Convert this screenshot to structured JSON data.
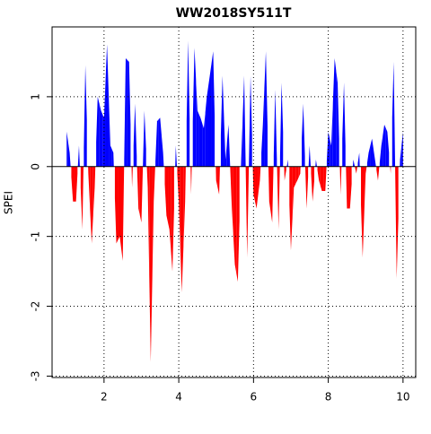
{
  "chart_data": {
    "type": "area",
    "title": "WW2018SY511T",
    "y_label": "SPEI",
    "x": [
      1,
      1.08,
      1.17,
      1.25,
      1.33,
      1.42,
      1.5,
      1.58,
      1.67,
      1.75,
      1.83,
      1.92,
      2,
      2.08,
      2.17,
      2.25,
      2.33,
      2.42,
      2.5,
      2.58,
      2.67,
      2.75,
      2.83,
      2.92,
      3,
      3.08,
      3.17,
      3.25,
      3.33,
      3.42,
      3.5,
      3.58,
      3.67,
      3.75,
      3.83,
      3.92,
      4,
      4.08,
      4.17,
      4.25,
      4.33,
      4.42,
      4.5,
      4.58,
      4.67,
      4.75,
      4.83,
      4.92,
      5,
      5.08,
      5.17,
      5.25,
      5.33,
      5.42,
      5.5,
      5.58,
      5.67,
      5.75,
      5.83,
      5.92,
      6,
      6.08,
      6.17,
      6.25,
      6.33,
      6.42,
      6.5,
      6.58,
      6.67,
      6.75,
      6.83,
      6.92,
      7,
      7.08,
      7.17,
      7.25,
      7.33,
      7.42,
      7.5,
      7.58,
      7.67,
      7.75,
      7.83,
      7.92,
      8,
      8.08,
      8.17,
      8.25,
      8.33,
      8.42,
      8.5,
      8.58,
      8.67,
      8.75,
      8.83,
      8.92,
      9,
      9.08,
      9.17,
      9.25,
      9.33,
      9.42,
      9.5,
      9.58,
      9.67,
      9.75,
      9.83,
      9.92,
      10
    ],
    "values": [
      0.5,
      0.2,
      -0.5,
      -0.5,
      0.3,
      -0.9,
      1.45,
      -0.1,
      -1.1,
      -0.3,
      1.0,
      0.8,
      0.7,
      1.75,
      0.3,
      0.2,
      -1.1,
      -1.0,
      -1.35,
      1.55,
      1.5,
      -0.3,
      0.9,
      -0.6,
      -0.8,
      0.8,
      -0.3,
      -2.8,
      -0.5,
      0.65,
      0.7,
      0.2,
      -0.7,
      -0.9,
      -1.5,
      0.3,
      -0.5,
      -1.8,
      -0.5,
      1.8,
      -0.4,
      1.7,
      0.8,
      0.7,
      0.55,
      1.0,
      1.3,
      1.65,
      -0.2,
      -0.4,
      1.3,
      0.1,
      0.6,
      -0.6,
      -1.4,
      -1.65,
      0.1,
      1.3,
      -1.3,
      1.3,
      -0.4,
      -0.6,
      -0.2,
      0.6,
      1.65,
      -0.5,
      -0.8,
      1.1,
      -0.9,
      1.2,
      -0.2,
      0.1,
      -1.2,
      -0.3,
      -0.2,
      -0.1,
      0.9,
      -0.6,
      0.3,
      -0.5,
      0.1,
      -0.2,
      -0.35,
      -0.35,
      0.5,
      0.3,
      1.55,
      1.2,
      -0.4,
      1.2,
      -0.6,
      -0.6,
      0.1,
      -0.1,
      0.2,
      -1.3,
      -0.1,
      0.2,
      0.4,
      0.1,
      -0.2,
      0.3,
      0.6,
      0.5,
      -0.1,
      1.5,
      -1.6,
      0.1,
      0.5
    ],
    "positive_color": "#0000ff",
    "negative_color": "#ff0000",
    "xlim": [
      0.61,
      10.34
    ],
    "ylim": [
      -3.02,
      2.0
    ],
    "xticks": [
      2,
      4,
      6,
      8,
      10
    ],
    "yticks": [
      -3,
      -2,
      -1,
      0,
      1
    ],
    "grid": true
  }
}
